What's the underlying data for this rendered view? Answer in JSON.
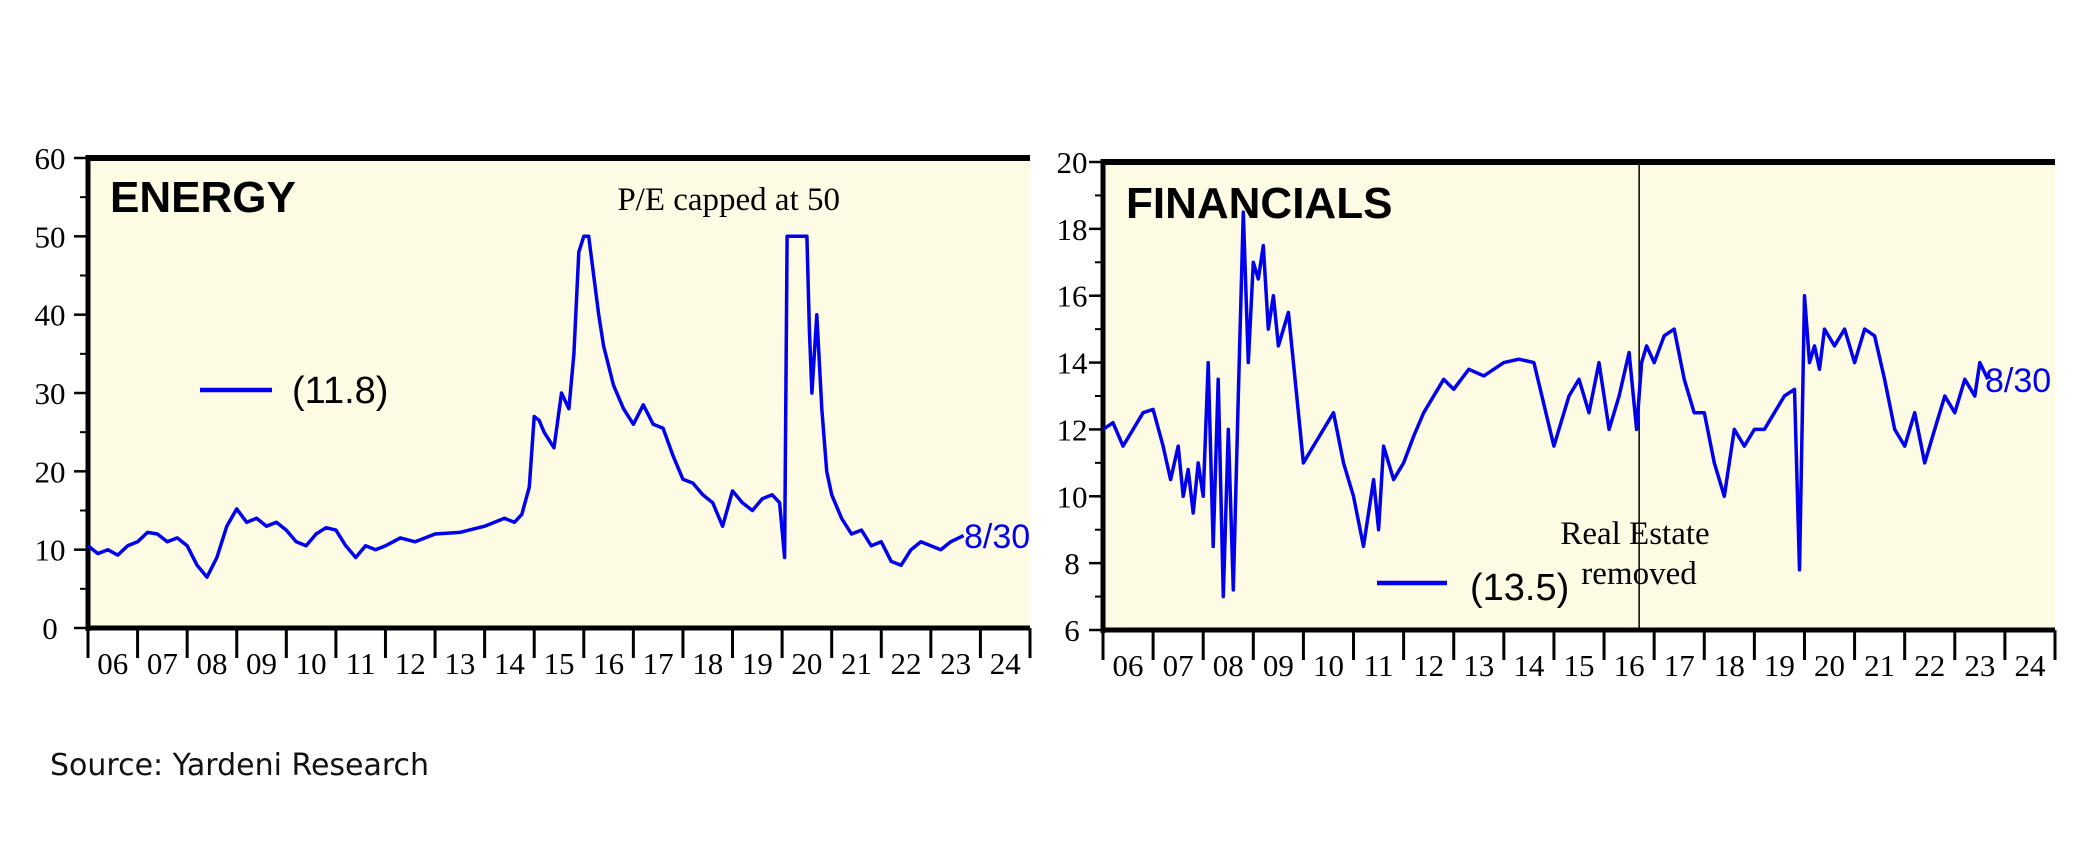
{
  "source": "Source: Yardeni Research",
  "colors": {
    "line": "#0000ee",
    "panel_bg": "#fdfbe3",
    "frame": "#000000"
  },
  "chart_data": [
    {
      "type": "line",
      "title": "ENERGY",
      "annotation": "P/E capped at 50",
      "legend_label": "(11.8)",
      "end_label": "8/30",
      "ylim": [
        0,
        60
      ],
      "y_ticks": [
        "0",
        "10",
        "20",
        "30",
        "40",
        "50",
        "60"
      ],
      "x_ticks": [
        "06",
        "07",
        "08",
        "09",
        "10",
        "11",
        "12",
        "13",
        "14",
        "15",
        "16",
        "17",
        "18",
        "19",
        "20",
        "21",
        "22",
        "23",
        "24"
      ],
      "xlim": [
        2006,
        2025
      ],
      "series": [
        {
          "x": [
            2006.0,
            2006.2,
            2006.4,
            2006.6,
            2006.8,
            2007.0,
            2007.2,
            2007.4,
            2007.6,
            2007.8,
            2008.0,
            2008.2,
            2008.4,
            2008.6,
            2008.8,
            2009.0,
            2009.2,
            2009.4,
            2009.6,
            2009.8,
            2010.0,
            2010.2,
            2010.4,
            2010.6,
            2010.8,
            2011.0,
            2011.2,
            2011.4,
            2011.6,
            2011.8,
            2012.0,
            2012.3,
            2012.6,
            2013.0,
            2013.5,
            2014.0,
            2014.4,
            2014.6,
            2014.75,
            2014.9,
            2015.0,
            2015.1,
            2015.2,
            2015.4,
            2015.55,
            2015.7,
            2015.8,
            2015.9,
            2016.0,
            2016.1,
            2016.2,
            2016.3,
            2016.4,
            2016.6,
            2016.8,
            2017.0,
            2017.2,
            2017.4,
            2017.6,
            2017.8,
            2018.0,
            2018.2,
            2018.4,
            2018.6,
            2018.8,
            2019.0,
            2019.2,
            2019.4,
            2019.6,
            2019.8,
            2019.95,
            2020.05,
            2020.1,
            2020.2,
            2020.3,
            2020.35,
            2020.4,
            2020.5,
            2020.55,
            2020.6,
            2020.7,
            2020.8,
            2020.9,
            2021.0,
            2021.2,
            2021.4,
            2021.6,
            2021.8,
            2022.0,
            2022.2,
            2022.4,
            2022.6,
            2022.8,
            2023.0,
            2023.2,
            2023.4,
            2023.66
          ],
          "y": [
            10.5,
            9.5,
            10.0,
            9.3,
            10.5,
            11.0,
            12.2,
            12.0,
            11.0,
            11.5,
            10.5,
            8.0,
            6.5,
            9.0,
            13.0,
            15.2,
            13.5,
            14.0,
            13.0,
            13.5,
            12.5,
            11.0,
            10.5,
            12.0,
            12.8,
            12.5,
            10.5,
            9.0,
            10.5,
            10.0,
            10.5,
            11.5,
            11.0,
            12.0,
            12.2,
            13.0,
            14.0,
            13.5,
            14.5,
            18.0,
            27.0,
            26.5,
            25.0,
            23.0,
            30.0,
            28.0,
            35.0,
            48.0,
            50.0,
            50.0,
            45.0,
            40.0,
            36.0,
            31.0,
            28.0,
            26.0,
            28.5,
            26.0,
            25.5,
            22.0,
            19.0,
            18.5,
            17.0,
            16.0,
            13.0,
            17.5,
            16.0,
            15.0,
            16.5,
            17.0,
            16.0,
            9.0,
            50.0,
            50.0,
            50.0,
            50.0,
            50.0,
            50.0,
            38.0,
            30.0,
            40.0,
            28.0,
            20.0,
            17.0,
            14.0,
            12.0,
            12.5,
            10.5,
            11.0,
            8.5,
            8.0,
            10.0,
            11.0,
            10.5,
            10.0,
            11.0,
            11.8
          ]
        }
      ]
    },
    {
      "type": "line",
      "title": "FINANCIALS",
      "annotation": "Real Estate removed",
      "legend_label": "(13.5)",
      "end_label": "8/30",
      "ylim": [
        6,
        20
      ],
      "y_ticks": [
        "6",
        "8",
        "10",
        "12",
        "14",
        "16",
        "18",
        "20"
      ],
      "x_ticks": [
        "06",
        "07",
        "08",
        "09",
        "10",
        "11",
        "12",
        "13",
        "14",
        "15",
        "16",
        "17",
        "18",
        "19",
        "20",
        "21",
        "22",
        "23",
        "24"
      ],
      "xlim": [
        2006,
        2025
      ],
      "marker_x": 2016.7,
      "series": [
        {
          "x": [
            2006.0,
            2006.2,
            2006.4,
            2006.6,
            2006.8,
            2007.0,
            2007.2,
            2007.35,
            2007.5,
            2007.6,
            2007.7,
            2007.8,
            2007.9,
            2008.0,
            2008.1,
            2008.2,
            2008.3,
            2008.4,
            2008.5,
            2008.6,
            2008.7,
            2008.8,
            2008.9,
            2009.0,
            2009.1,
            2009.2,
            2009.3,
            2009.4,
            2009.5,
            2009.7,
            2009.9,
            2010.0,
            2010.2,
            2010.4,
            2010.6,
            2010.8,
            2011.0,
            2011.2,
            2011.4,
            2011.5,
            2011.6,
            2011.8,
            2012.0,
            2012.2,
            2012.4,
            2012.6,
            2012.8,
            2013.0,
            2013.3,
            2013.6,
            2014.0,
            2014.3,
            2014.6,
            2015.0,
            2015.3,
            2015.5,
            2015.7,
            2015.9,
            2016.1,
            2016.3,
            2016.5,
            2016.65,
            2016.75,
            2016.85,
            2017.0,
            2017.2,
            2017.4,
            2017.6,
            2017.8,
            2018.0,
            2018.2,
            2018.4,
            2018.6,
            2018.8,
            2019.0,
            2019.2,
            2019.4,
            2019.6,
            2019.8,
            2019.9,
            2020.0,
            2020.1,
            2020.2,
            2020.3,
            2020.4,
            2020.6,
            2020.8,
            2021.0,
            2021.2,
            2021.4,
            2021.6,
            2021.8,
            2022.0,
            2022.2,
            2022.4,
            2022.6,
            2022.8,
            2023.0,
            2023.2,
            2023.4,
            2023.5,
            2023.66
          ],
          "y": [
            12.0,
            12.2,
            11.5,
            12.0,
            12.5,
            12.6,
            11.5,
            10.5,
            11.5,
            10.0,
            10.8,
            9.5,
            11.0,
            10.0,
            14.0,
            8.5,
            13.5,
            7.0,
            12.0,
            7.2,
            13.0,
            18.5,
            14.0,
            17.0,
            16.5,
            17.5,
            15.0,
            16.0,
            14.5,
            15.5,
            12.5,
            11.0,
            11.5,
            12.0,
            12.5,
            11.0,
            10.0,
            8.5,
            10.5,
            9.0,
            11.5,
            10.5,
            11.0,
            11.8,
            12.5,
            13.0,
            13.5,
            13.2,
            13.8,
            13.6,
            14.0,
            14.1,
            14.0,
            11.5,
            13.0,
            13.5,
            12.5,
            14.0,
            12.0,
            13.0,
            14.3,
            12.0,
            14.0,
            14.5,
            14.0,
            14.8,
            15.0,
            13.5,
            12.5,
            12.5,
            11.0,
            10.0,
            12.0,
            11.5,
            12.0,
            12.0,
            12.5,
            13.0,
            13.2,
            7.8,
            16.0,
            14.0,
            14.5,
            13.8,
            15.0,
            14.5,
            15.0,
            14.0,
            15.0,
            14.8,
            13.5,
            12.0,
            11.5,
            12.5,
            11.0,
            12.0,
            13.0,
            12.5,
            13.5,
            13.0,
            14.0,
            13.5
          ]
        }
      ]
    }
  ]
}
